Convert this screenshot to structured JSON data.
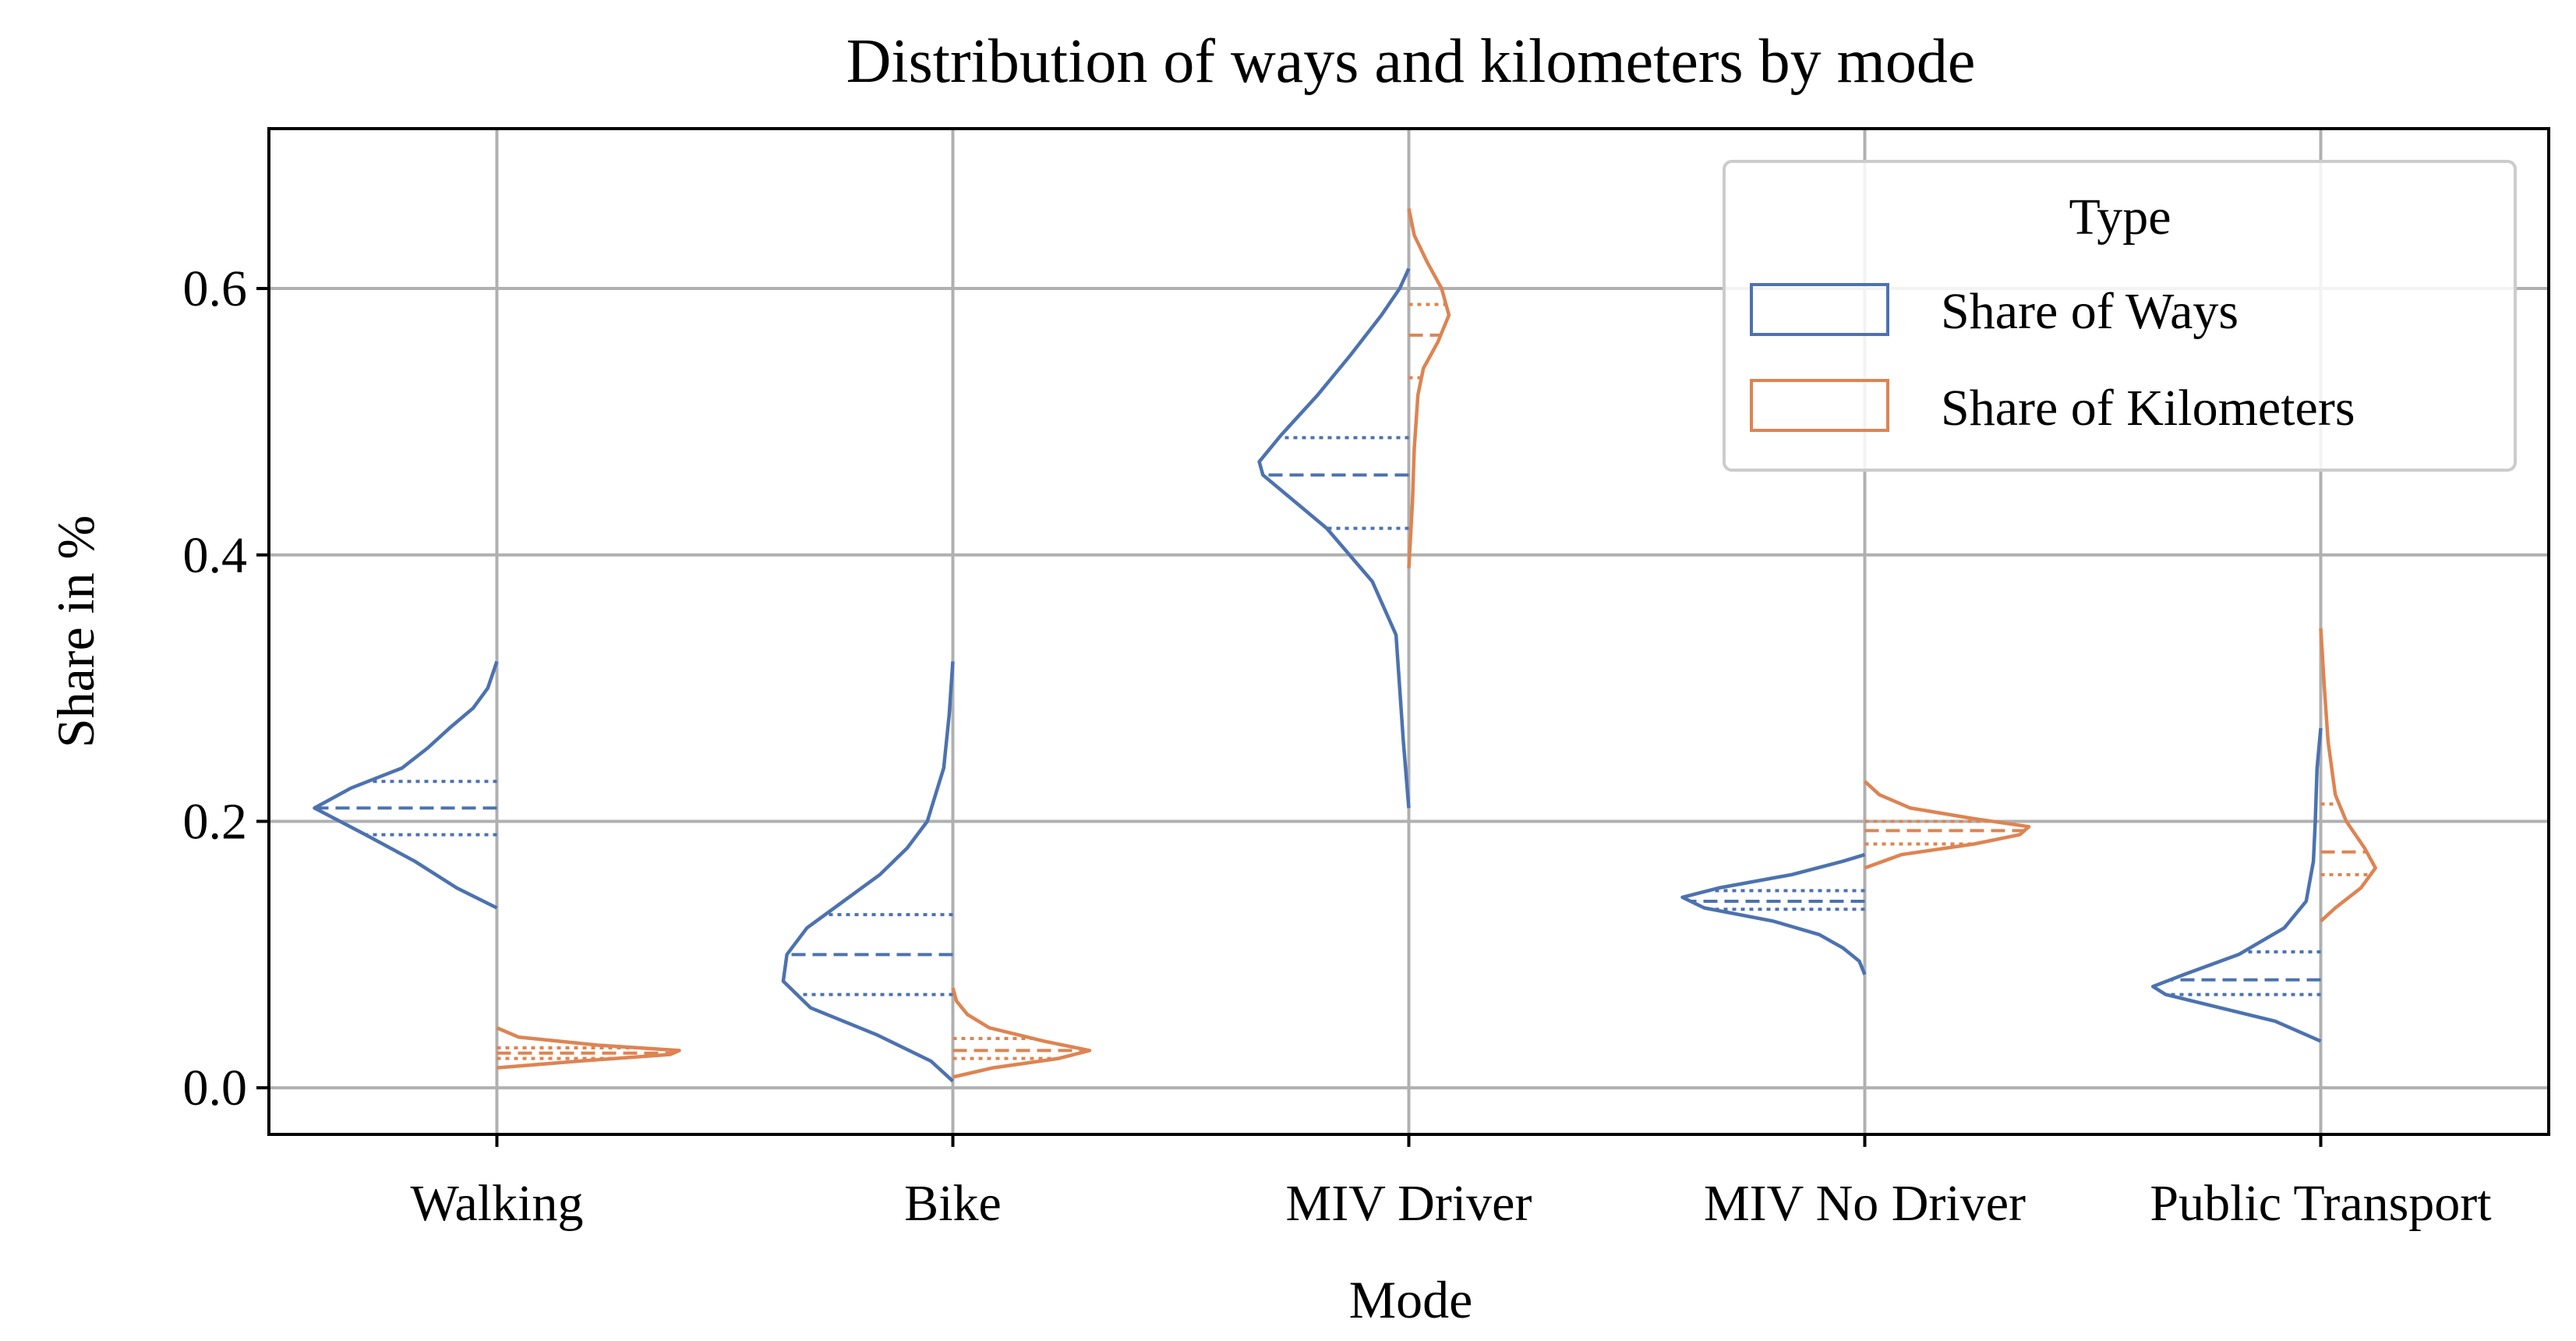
{
  "chart_data": {
    "type": "violin",
    "split": true,
    "title": "Distribution of ways and kilometers by mode",
    "xlabel": "Mode",
    "ylabel": "Share in %",
    "ylim": [
      -0.035,
      0.72
    ],
    "yticks": [
      0.0,
      0.2,
      0.4,
      0.6
    ],
    "ytick_labels": [
      "0.0",
      "0.2",
      "0.4",
      "0.6"
    ],
    "categories": [
      "Walking",
      "Bike",
      "MIV Driver",
      "MIV No Driver",
      "Public Transport"
    ],
    "grid": true,
    "legend": {
      "title": "Type",
      "position": "top-right",
      "entries": [
        "Share of Ways",
        "Share of Kilometers"
      ]
    },
    "series": [
      {
        "name": "Share of Ways",
        "side": "left",
        "color": "#4c72b0",
        "violins": [
          {
            "category": "Walking",
            "profile": [
              [
                0.135,
                0.0
              ],
              [
                0.15,
                0.22
              ],
              [
                0.17,
                0.45
              ],
              [
                0.19,
                0.72
              ],
              [
                0.21,
                1.0
              ],
              [
                0.225,
                0.8
              ],
              [
                0.24,
                0.52
              ],
              [
                0.255,
                0.38
              ],
              [
                0.27,
                0.26
              ],
              [
                0.285,
                0.13
              ],
              [
                0.3,
                0.05
              ],
              [
                0.32,
                0.0
              ]
            ],
            "quartiles": [
              0.19,
              0.21,
              0.23
            ]
          },
          {
            "category": "Bike",
            "profile": [
              [
                0.005,
                0.0
              ],
              [
                0.02,
                0.12
              ],
              [
                0.04,
                0.42
              ],
              [
                0.06,
                0.78
              ],
              [
                0.08,
                0.93
              ],
              [
                0.1,
                0.91
              ],
              [
                0.12,
                0.8
              ],
              [
                0.14,
                0.6
              ],
              [
                0.16,
                0.4
              ],
              [
                0.18,
                0.25
              ],
              [
                0.2,
                0.14
              ],
              [
                0.24,
                0.05
              ],
              [
                0.28,
                0.02
              ],
              [
                0.32,
                0.0
              ]
            ],
            "quartiles": [
              0.07,
              0.1,
              0.13
            ]
          },
          {
            "category": "MIV Driver",
            "profile": [
              [
                0.21,
                0.0
              ],
              [
                0.26,
                0.03
              ],
              [
                0.3,
                0.05
              ],
              [
                0.34,
                0.07
              ],
              [
                0.38,
                0.2
              ],
              [
                0.42,
                0.45
              ],
              [
                0.46,
                0.8
              ],
              [
                0.47,
                0.82
              ],
              [
                0.49,
                0.7
              ],
              [
                0.52,
                0.5
              ],
              [
                0.55,
                0.32
              ],
              [
                0.58,
                0.15
              ],
              [
                0.6,
                0.05
              ],
              [
                0.615,
                0.0
              ]
            ],
            "quartiles": [
              0.42,
              0.46,
              0.488
            ]
          },
          {
            "category": "MIV No Driver",
            "profile": [
              [
                0.085,
                0.0
              ],
              [
                0.095,
                0.03
              ],
              [
                0.105,
                0.12
              ],
              [
                0.115,
                0.25
              ],
              [
                0.125,
                0.5
              ],
              [
                0.135,
                0.88
              ],
              [
                0.143,
                1.0
              ],
              [
                0.15,
                0.8
              ],
              [
                0.16,
                0.4
              ],
              [
                0.17,
                0.12
              ],
              [
                0.175,
                0.0
              ]
            ],
            "quartiles": [
              0.134,
              0.14,
              0.148
            ]
          },
          {
            "category": "Public Transport",
            "profile": [
              [
                0.035,
                0.0
              ],
              [
                0.05,
                0.25
              ],
              [
                0.06,
                0.55
              ],
              [
                0.07,
                0.85
              ],
              [
                0.076,
                0.92
              ],
              [
                0.085,
                0.75
              ],
              [
                0.1,
                0.45
              ],
              [
                0.12,
                0.2
              ],
              [
                0.14,
                0.08
              ],
              [
                0.17,
                0.04
              ],
              [
                0.2,
                0.03
              ],
              [
                0.24,
                0.02
              ],
              [
                0.27,
                0.0
              ]
            ],
            "quartiles": [
              0.07,
              0.081,
              0.102
            ]
          }
        ]
      },
      {
        "name": "Share of Kilometers",
        "side": "right",
        "color": "#dd8452",
        "violins": [
          {
            "category": "Walking",
            "profile": [
              [
                0.015,
                0.0
              ],
              [
                0.02,
                0.45
              ],
              [
                0.025,
                0.95
              ],
              [
                0.028,
                1.0
              ],
              [
                0.032,
                0.55
              ],
              [
                0.038,
                0.12
              ],
              [
                0.045,
                0.0
              ]
            ],
            "quartiles": [
              0.022,
              0.026,
              0.03
            ]
          },
          {
            "category": "Bike",
            "profile": [
              [
                0.008,
                0.0
              ],
              [
                0.015,
                0.22
              ],
              [
                0.022,
                0.58
              ],
              [
                0.028,
                0.75
              ],
              [
                0.035,
                0.5
              ],
              [
                0.045,
                0.2
              ],
              [
                0.055,
                0.08
              ],
              [
                0.065,
                0.02
              ],
              [
                0.075,
                0.0
              ]
            ],
            "quartiles": [
              0.022,
              0.028,
              0.037
            ]
          },
          {
            "category": "MIV Driver",
            "profile": [
              [
                0.39,
                0.0
              ],
              [
                0.44,
                0.02
              ],
              [
                0.48,
                0.03
              ],
              [
                0.52,
                0.05
              ],
              [
                0.54,
                0.08
              ],
              [
                0.56,
                0.16
              ],
              [
                0.58,
                0.22
              ],
              [
                0.6,
                0.18
              ],
              [
                0.62,
                0.1
              ],
              [
                0.64,
                0.03
              ],
              [
                0.66,
                0.0
              ]
            ],
            "quartiles": [
              0.533,
              0.565,
              0.588
            ]
          },
          {
            "category": "MIV No Driver",
            "profile": [
              [
                0.165,
                0.0
              ],
              [
                0.175,
                0.2
              ],
              [
                0.183,
                0.6
              ],
              [
                0.19,
                0.85
              ],
              [
                0.196,
                0.9
              ],
              [
                0.202,
                0.6
              ],
              [
                0.21,
                0.25
              ],
              [
                0.22,
                0.08
              ],
              [
                0.23,
                0.0
              ]
            ],
            "quartiles": [
              0.183,
              0.193,
              0.2
            ]
          },
          {
            "category": "Public Transport",
            "profile": [
              [
                0.125,
                0.0
              ],
              [
                0.135,
                0.08
              ],
              [
                0.15,
                0.22
              ],
              [
                0.165,
                0.3
              ],
              [
                0.18,
                0.24
              ],
              [
                0.2,
                0.14
              ],
              [
                0.22,
                0.08
              ],
              [
                0.26,
                0.04
              ],
              [
                0.3,
                0.02
              ],
              [
                0.345,
                0.0
              ]
            ],
            "quartiles": [
              0.16,
              0.177,
              0.213
            ]
          }
        ]
      }
    ]
  }
}
